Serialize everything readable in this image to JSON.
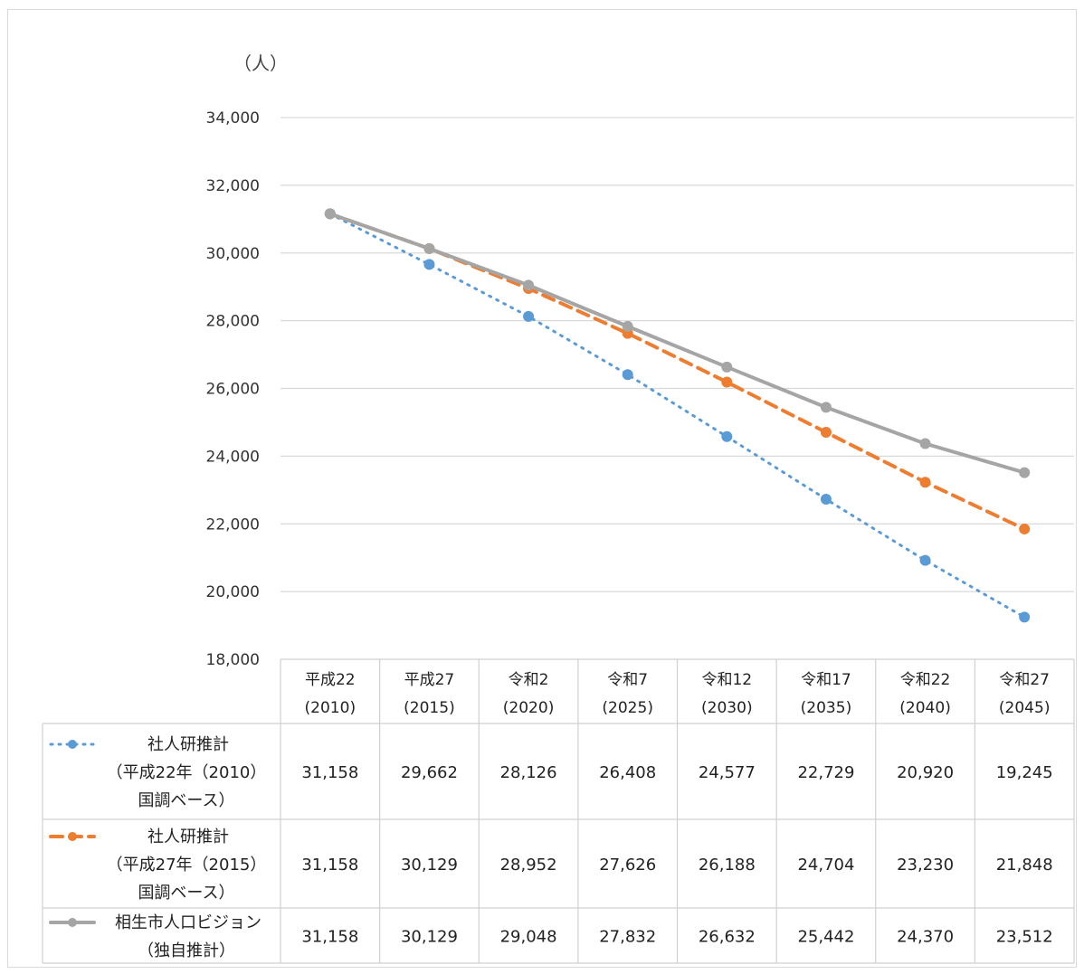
{
  "chart_data": {
    "type": "line",
    "y_unit_label": "（人）",
    "ylim": [
      18000,
      34000
    ],
    "y_ticks": [
      "18,000",
      "20,000",
      "22,000",
      "24,000",
      "26,000",
      "28,000",
      "30,000",
      "32,000",
      "34,000"
    ],
    "y_tick_values": [
      18000,
      20000,
      22000,
      24000,
      26000,
      28000,
      30000,
      32000,
      34000
    ],
    "grid": true,
    "categories": [
      [
        "平成22",
        "(2010)"
      ],
      [
        "平成27",
        "(2015)"
      ],
      [
        "令和2",
        "(2020)"
      ],
      [
        "令和7",
        "(2025)"
      ],
      [
        "令和12",
        "(2030)"
      ],
      [
        "令和17",
        "(2035)"
      ],
      [
        "令和22",
        "(2040)"
      ],
      [
        "令和27",
        "(2045)"
      ]
    ],
    "series": [
      {
        "name_lines": [
          "社人研推計",
          "（平成22年（2010）",
          "国調ベース）"
        ],
        "color": "#5b9bd5",
        "style": "dotted",
        "values": [
          31158,
          29662,
          28126,
          26408,
          24577,
          22729,
          20920,
          19245
        ],
        "labels": [
          "31,158",
          "29,662",
          "28,126",
          "26,408",
          "24,577",
          "22,729",
          "20,920",
          "19,245"
        ]
      },
      {
        "name_lines": [
          "社人研推計",
          "（平成27年（2015）",
          "国調ベース）"
        ],
        "color": "#ed7d31",
        "style": "dashed",
        "values": [
          31158,
          30129,
          28952,
          27626,
          26188,
          24704,
          23230,
          21848
        ],
        "labels": [
          "31,158",
          "30,129",
          "28,952",
          "27,626",
          "26,188",
          "24,704",
          "23,230",
          "21,848"
        ]
      },
      {
        "name_lines": [
          "相生市人口ビジョン",
          "（独自推計）"
        ],
        "color": "#a5a5a5",
        "style": "solid",
        "values": [
          31158,
          30129,
          29048,
          27832,
          26632,
          25442,
          24370,
          23512
        ],
        "labels": [
          "31,158",
          "30,129",
          "29,048",
          "27,832",
          "26,632",
          "25,442",
          "24,370",
          "23,512"
        ]
      }
    ],
    "legend_placement": "data-table"
  }
}
